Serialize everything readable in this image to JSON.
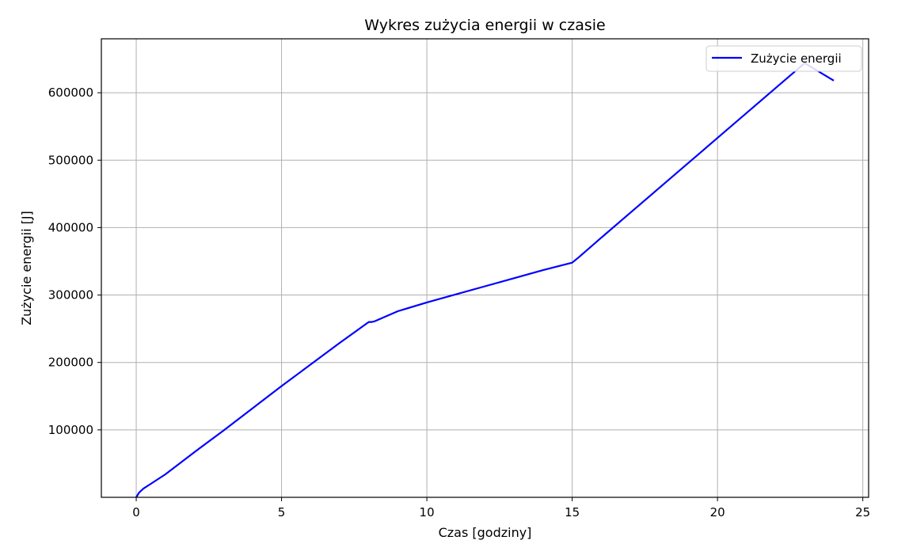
{
  "chart_data": {
    "type": "line",
    "title": "Wykres zużycia energii w czasie",
    "xlabel": "Czas [godziny]",
    "ylabel": "Zużycie energii [J]",
    "xlim": [
      -1.2,
      25.2
    ],
    "ylim": [
      0,
      680000
    ],
    "xticks": [
      0,
      5,
      10,
      15,
      20,
      25
    ],
    "xtick_labels": [
      "0",
      "5",
      "10",
      "15",
      "20",
      "25"
    ],
    "yticks": [
      100000,
      200000,
      300000,
      400000,
      500000,
      600000
    ],
    "ytick_labels": [
      "100000",
      "200000",
      "300000",
      "400000",
      "500000",
      "600000"
    ],
    "grid": true,
    "legend": {
      "position": "top-right",
      "entries": [
        "Zużycie energii"
      ]
    },
    "series": [
      {
        "name": "Zużycie energii",
        "color": "#0000ff",
        "x": [
          0,
          0.1,
          0.25,
          0.5,
          1,
          2,
          3,
          4,
          5,
          6,
          7,
          8,
          8.1,
          8.2,
          9,
          10,
          11,
          12,
          13,
          14,
          15,
          15.2,
          16,
          17,
          18,
          19,
          20,
          21,
          22,
          23,
          24
        ],
        "y": [
          0,
          7000,
          13000,
          20000,
          34000,
          67000,
          99000,
          132000,
          165000,
          197000,
          229000,
          260000,
          260000,
          261000,
          276000,
          289000,
          301000,
          313000,
          325000,
          337000,
          348000,
          355000,
          385000,
          422000,
          459000,
          496000,
          533000,
          570000,
          607000,
          644000,
          618000
        ]
      }
    ]
  }
}
